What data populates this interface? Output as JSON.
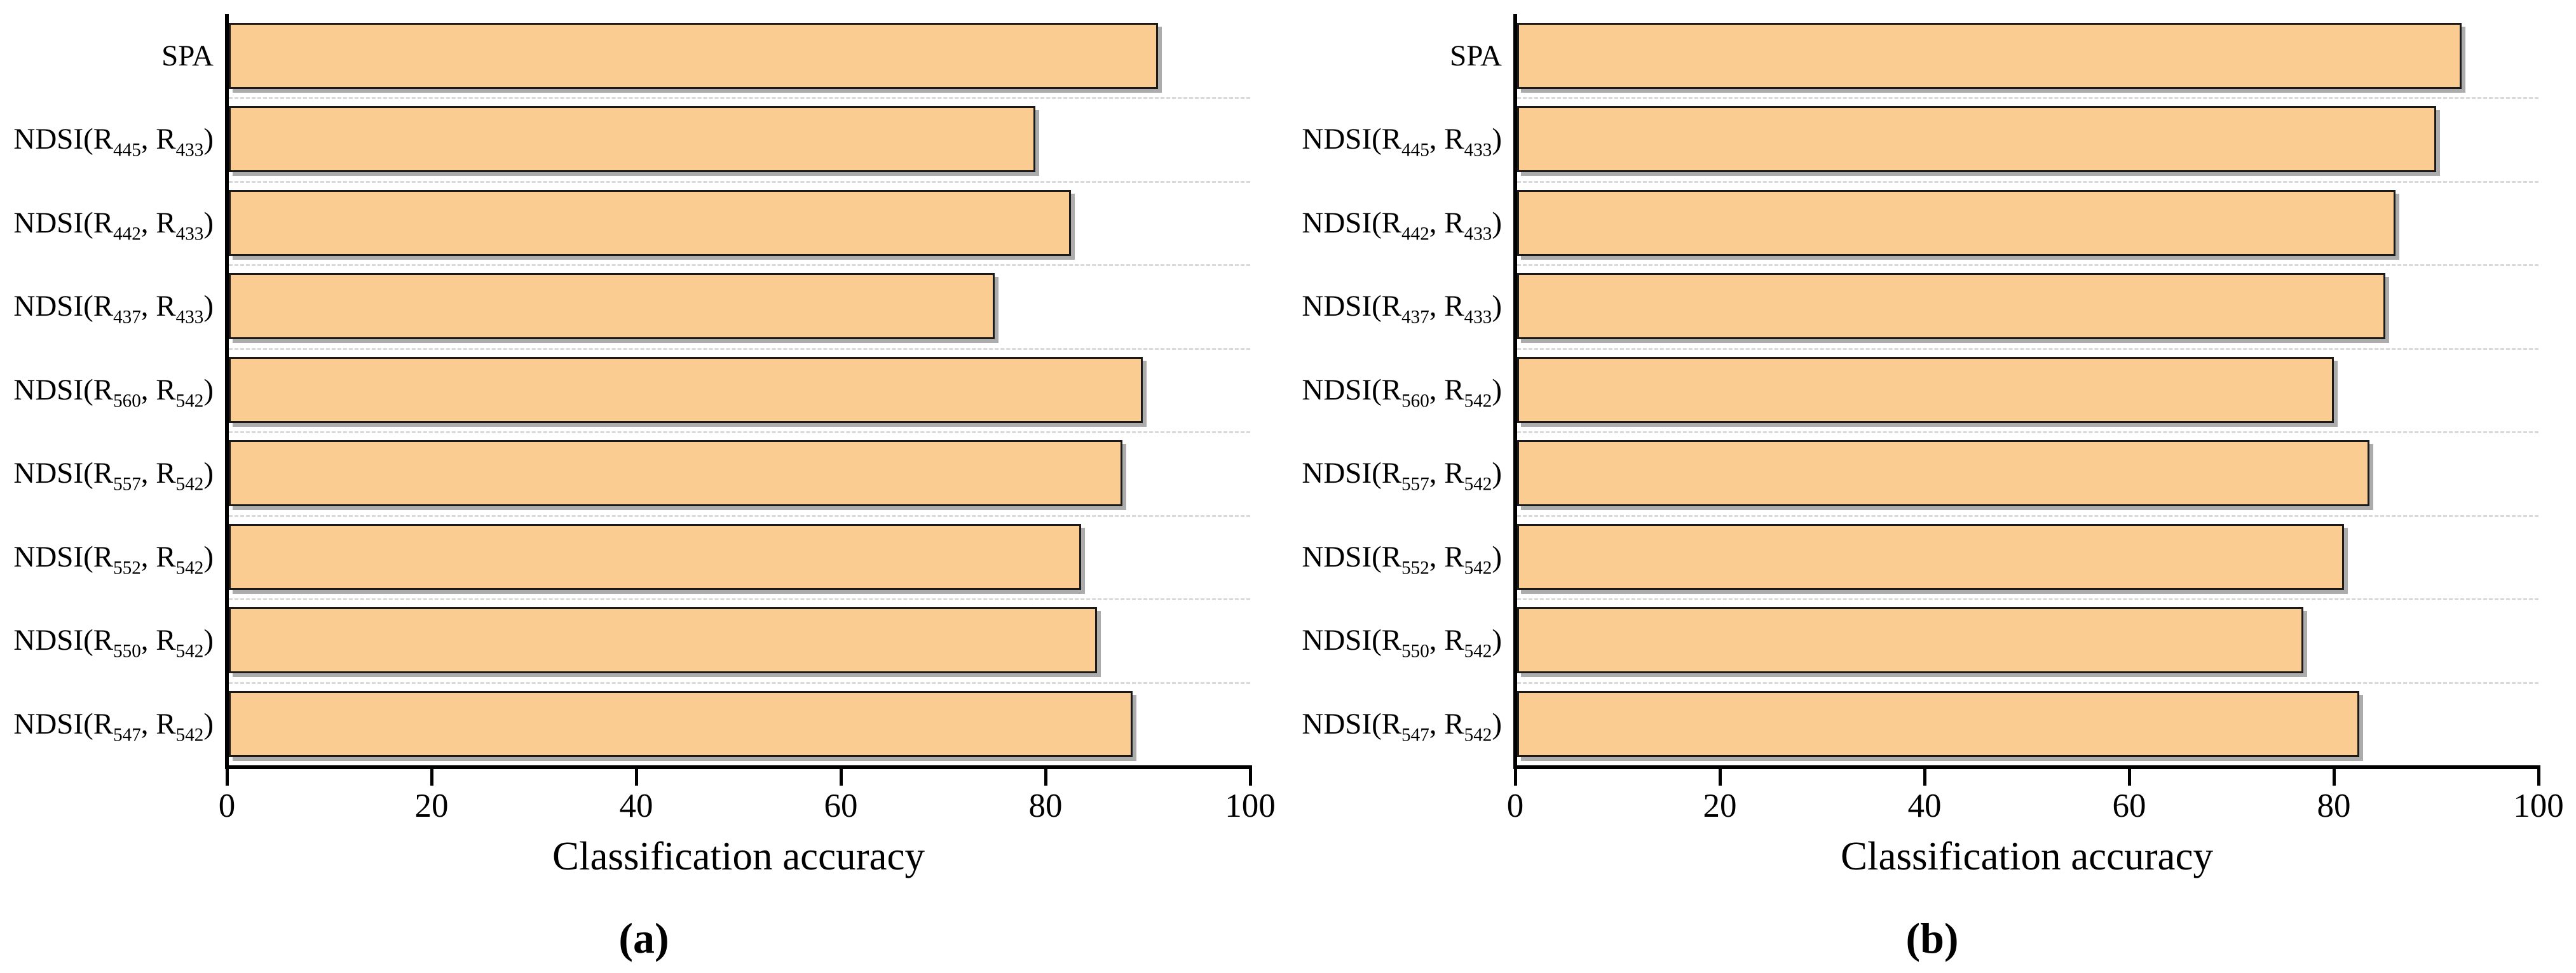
{
  "figure": {
    "background": "#ffffff",
    "colors": {
      "bar_fill": "#FBCC92",
      "bar_border": "#1A1A1A",
      "bar_shadow": "rgba(70,70,70,0.45)",
      "axis": "#000000",
      "grid": "#D9D9D9",
      "text": "#000000"
    }
  },
  "chart_data": [
    {
      "type": "bar",
      "orientation": "horizontal",
      "panel_label": "(a)",
      "xlabel": "Classification accuracy",
      "ylabel": "",
      "xlim": [
        0,
        100
      ],
      "xticks": [
        0,
        20,
        40,
        60,
        80,
        100
      ],
      "grid": "dashed horizontal separators between category rows",
      "legend": "none",
      "bar_color": "#FBCC92",
      "bar_border_color": "#1A1A1A",
      "categories": [
        "SPA",
        "NDSI(R445, R433)",
        "NDSI(R442, R433)",
        "NDSI(R437, R433)",
        "NDSI(R560, R542)",
        "NDSI(R557, R542)",
        "NDSI(R552, R542)",
        "NDSI(R550, R542)",
        "NDSI(R547, R542)"
      ],
      "categories_segments": [
        [
          {
            "text": "SPA",
            "sub": false
          }
        ],
        [
          {
            "text": "NDSI(R",
            "sub": false
          },
          {
            "text": "445",
            "sub": true
          },
          {
            "text": ", R",
            "sub": false
          },
          {
            "text": "433",
            "sub": true
          },
          {
            "text": ")",
            "sub": false
          }
        ],
        [
          {
            "text": "NDSI(R",
            "sub": false
          },
          {
            "text": "442",
            "sub": true
          },
          {
            "text": ", R",
            "sub": false
          },
          {
            "text": "433",
            "sub": true
          },
          {
            "text": ")",
            "sub": false
          }
        ],
        [
          {
            "text": "NDSI(R",
            "sub": false
          },
          {
            "text": "437",
            "sub": true
          },
          {
            "text": ", R",
            "sub": false
          },
          {
            "text": "433",
            "sub": true
          },
          {
            "text": ")",
            "sub": false
          }
        ],
        [
          {
            "text": "NDSI(R",
            "sub": false
          },
          {
            "text": "560",
            "sub": true
          },
          {
            "text": ", R",
            "sub": false
          },
          {
            "text": "542",
            "sub": true
          },
          {
            "text": ")",
            "sub": false
          }
        ],
        [
          {
            "text": "NDSI(R",
            "sub": false
          },
          {
            "text": "557",
            "sub": true
          },
          {
            "text": ", R",
            "sub": false
          },
          {
            "text": "542",
            "sub": true
          },
          {
            "text": ")",
            "sub": false
          }
        ],
        [
          {
            "text": "NDSI(R",
            "sub": false
          },
          {
            "text": "552",
            "sub": true
          },
          {
            "text": ", R",
            "sub": false
          },
          {
            "text": "542",
            "sub": true
          },
          {
            "text": ")",
            "sub": false
          }
        ],
        [
          {
            "text": "NDSI(R",
            "sub": false
          },
          {
            "text": "550",
            "sub": true
          },
          {
            "text": ", R",
            "sub": false
          },
          {
            "text": "542",
            "sub": true
          },
          {
            "text": ")",
            "sub": false
          }
        ],
        [
          {
            "text": "NDSI(R",
            "sub": false
          },
          {
            "text": "547",
            "sub": true
          },
          {
            "text": ", R",
            "sub": false
          },
          {
            "text": "542",
            "sub": true
          },
          {
            "text": ")",
            "sub": false
          }
        ]
      ],
      "values": [
        91,
        79,
        82.5,
        75,
        89.5,
        87.5,
        83.5,
        85,
        88.5
      ]
    },
    {
      "type": "bar",
      "orientation": "horizontal",
      "panel_label": "(b)",
      "xlabel": "Classification accuracy",
      "ylabel": "",
      "xlim": [
        0,
        100
      ],
      "xticks": [
        0,
        20,
        40,
        60,
        80,
        100
      ],
      "grid": "dashed horizontal separators between category rows",
      "legend": "none",
      "bar_color": "#FBCC92",
      "bar_border_color": "#1A1A1A",
      "categories": [
        "SPA",
        "NDSI(R445, R433)",
        "NDSI(R442, R433)",
        "NDSI(R437, R433)",
        "NDSI(R560, R542)",
        "NDSI(R557, R542)",
        "NDSI(R552, R542)",
        "NDSI(R550, R542)",
        "NDSI(R547, R542)"
      ],
      "categories_segments": [
        [
          {
            "text": "SPA",
            "sub": false
          }
        ],
        [
          {
            "text": "NDSI(R",
            "sub": false
          },
          {
            "text": "445",
            "sub": true
          },
          {
            "text": ", R",
            "sub": false
          },
          {
            "text": "433",
            "sub": true
          },
          {
            "text": ")",
            "sub": false
          }
        ],
        [
          {
            "text": "NDSI(R",
            "sub": false
          },
          {
            "text": "442",
            "sub": true
          },
          {
            "text": ", R",
            "sub": false
          },
          {
            "text": "433",
            "sub": true
          },
          {
            "text": ")",
            "sub": false
          }
        ],
        [
          {
            "text": "NDSI(R",
            "sub": false
          },
          {
            "text": "437",
            "sub": true
          },
          {
            "text": ", R",
            "sub": false
          },
          {
            "text": "433",
            "sub": true
          },
          {
            "text": ")",
            "sub": false
          }
        ],
        [
          {
            "text": "NDSI(R",
            "sub": false
          },
          {
            "text": "560",
            "sub": true
          },
          {
            "text": ", R",
            "sub": false
          },
          {
            "text": "542",
            "sub": true
          },
          {
            "text": ")",
            "sub": false
          }
        ],
        [
          {
            "text": "NDSI(R",
            "sub": false
          },
          {
            "text": "557",
            "sub": true
          },
          {
            "text": ", R",
            "sub": false
          },
          {
            "text": "542",
            "sub": true
          },
          {
            "text": ")",
            "sub": false
          }
        ],
        [
          {
            "text": "NDSI(R",
            "sub": false
          },
          {
            "text": "552",
            "sub": true
          },
          {
            "text": ", R",
            "sub": false
          },
          {
            "text": "542",
            "sub": true
          },
          {
            "text": ")",
            "sub": false
          }
        ],
        [
          {
            "text": "NDSI(R",
            "sub": false
          },
          {
            "text": "550",
            "sub": true
          },
          {
            "text": ", R",
            "sub": false
          },
          {
            "text": "542",
            "sub": true
          },
          {
            "text": ")",
            "sub": false
          }
        ],
        [
          {
            "text": "NDSI(R",
            "sub": false
          },
          {
            "text": "547",
            "sub": true
          },
          {
            "text": ", R",
            "sub": false
          },
          {
            "text": "542",
            "sub": true
          },
          {
            "text": ")",
            "sub": false
          }
        ]
      ],
      "values": [
        92.5,
        90,
        86,
        85,
        80,
        83.5,
        81,
        77,
        82.5
      ]
    }
  ]
}
